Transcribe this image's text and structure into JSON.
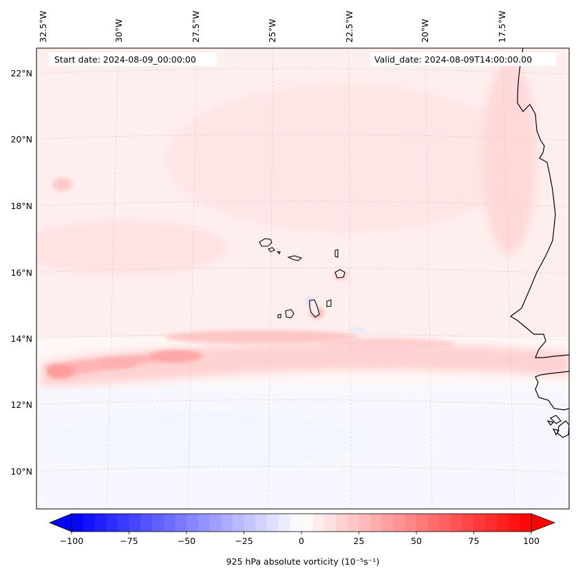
{
  "map": {
    "start_date": "Start date: 2024-08-09_00:00:00",
    "valid_date": "Valid_date: 2024-08-09T14:00:00.00",
    "lon_labels": [
      "32.5°W",
      "30°W",
      "27.5°W",
      "25°W",
      "22.5°W",
      "20°W",
      "17.5°W"
    ],
    "lat_labels": [
      "22°N",
      "20°N",
      "18°N",
      "16°N",
      "14°N",
      "12°N",
      "10°N"
    ],
    "features": [
      "Cape Verde islands",
      "West African coastline"
    ],
    "colors": {
      "negative_extreme": "#0000ff",
      "neutral": "#ffffff",
      "positive_extreme": "#ff0000",
      "coastline": "#000000",
      "gridline": "#c8c8c8"
    }
  },
  "colorbar": {
    "label": "925 hPa absolute vorticity (10⁻⁵s⁻¹)",
    "min": -100,
    "max": 100,
    "levels": 40,
    "ticks": [
      "−100",
      "−75",
      "−50",
      "−25",
      "0",
      "25",
      "50",
      "75",
      "100"
    ],
    "extend": "both"
  }
}
